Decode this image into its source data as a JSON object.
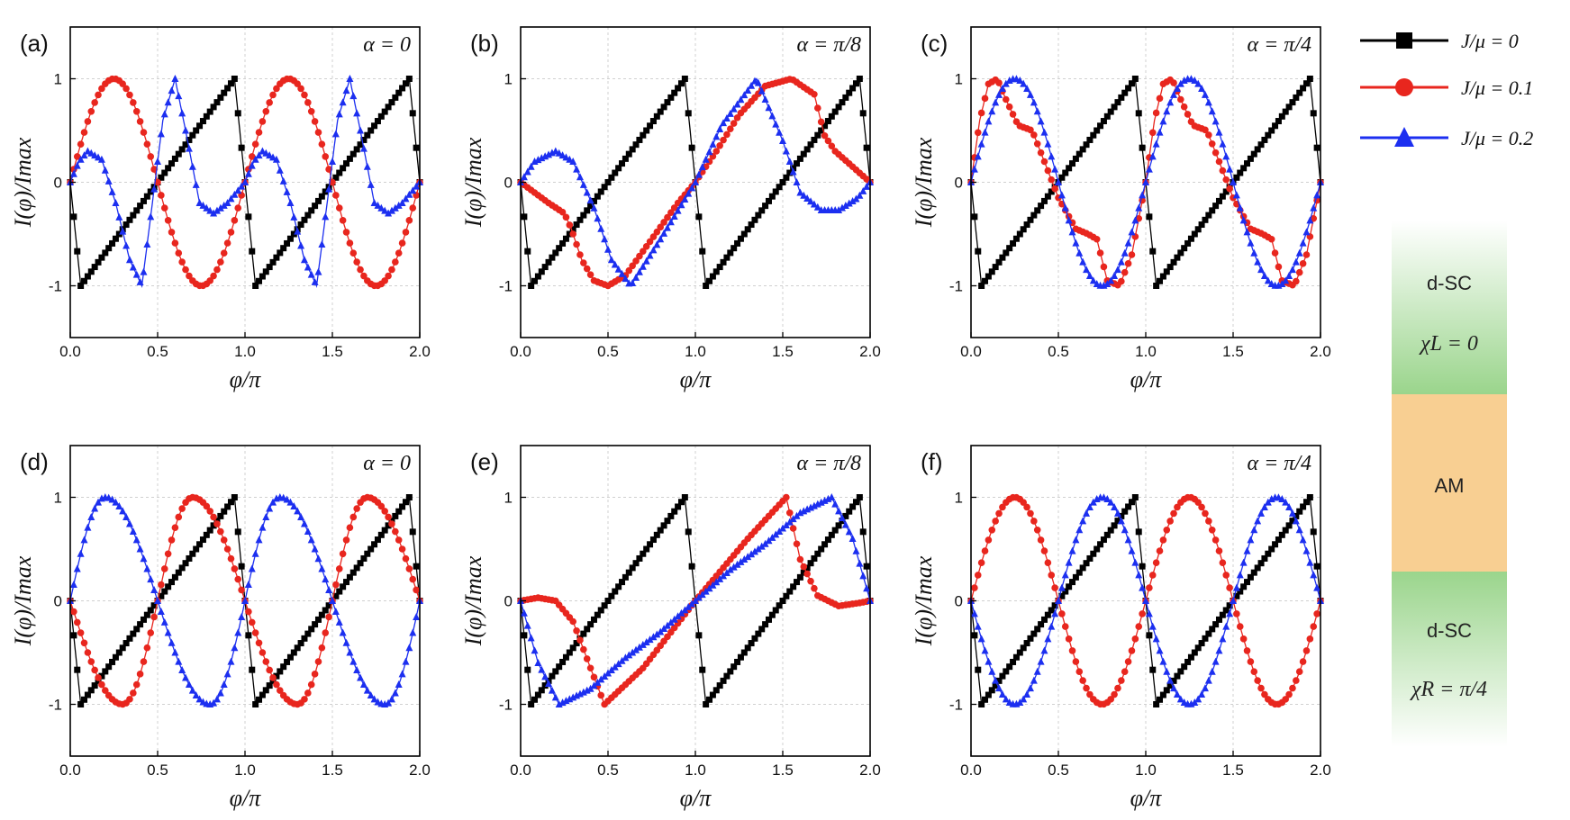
{
  "figure": {
    "legend": [
      {
        "label": "J/μ = 0",
        "color": "#000000",
        "marker": "square"
      },
      {
        "label": "J/μ = 0.1",
        "color": "#e8261e",
        "marker": "circle"
      },
      {
        "label": "J/μ = 0.2",
        "color": "#1c2ff0",
        "marker": "triangle"
      }
    ],
    "schematic": {
      "top_layer": {
        "name": "d-SC",
        "chi": "χL = 0",
        "color": "#8fd07f"
      },
      "middle_layer": {
        "name": "AM",
        "color": "#f8cf92"
      },
      "bottom_layer": {
        "name": "d-SC",
        "chi": "χR = π/4",
        "color": "#8fd07f"
      }
    }
  },
  "chart_data": [
    {
      "panel": "(a)",
      "type": "line",
      "annotation": "α = 0",
      "xlabel": "φ/π",
      "ylabel": "I(φ)/Imax",
      "xlim": [
        0,
        2
      ],
      "ylim": [
        -1.5,
        1.5
      ],
      "xticks": [
        "0.0",
        "0.5",
        "1.0",
        "1.5",
        "2.0"
      ],
      "yticks": [
        "1",
        "0",
        "-1"
      ],
      "series": [
        {
          "name": "J/μ = 0",
          "func": "saw",
          "params": {
            "phase": 0
          }
        },
        {
          "name": "J/μ = 0.1",
          "func": "sine",
          "params": {
            "sign": 1,
            "peak": 0.33
          }
        },
        {
          "name": "J/μ = 0.2",
          "func": "wiggle",
          "params": {
            "peak": 0.6
          }
        }
      ]
    },
    {
      "panel": "(b)",
      "type": "line",
      "annotation": "α = π/8",
      "xlabel": "φ/π",
      "ylabel": "I(φ)/Imax",
      "xlim": [
        0,
        2
      ],
      "ylim": [
        -1.5,
        1.5
      ],
      "xticks": [
        "0.0",
        "0.5",
        "1.0",
        "1.5",
        "2.0"
      ],
      "yticks": [
        "1",
        "0",
        "-1"
      ],
      "series": [
        {
          "name": "J/μ = 0",
          "func": "saw",
          "params": {
            "phase": 0
          }
        },
        {
          "name": "J/μ = 0.1",
          "func": "bshape",
          "params": {
            "min_at": 0.5,
            "max_at": 1.55,
            "kink": 0.27
          }
        },
        {
          "name": "J/μ = 0.2",
          "func": "bsine",
          "params": {
            "max_at": 1.35,
            "min_at": 0.63,
            "bump": 0.3
          }
        }
      ]
    },
    {
      "panel": "(c)",
      "type": "line",
      "annotation": "α = π/4",
      "xlabel": "φ/π",
      "ylabel": "I(φ)/Imax",
      "xlim": [
        0,
        2
      ],
      "ylim": [
        -1.5,
        1.5
      ],
      "xticks": [
        "0.0",
        "0.5",
        "1.0",
        "1.5",
        "2.0"
      ],
      "yticks": [
        "1",
        "0",
        "-1"
      ],
      "series": [
        {
          "name": "J/μ = 0",
          "func": "saw",
          "params": {
            "phase": 0
          }
        },
        {
          "name": "J/μ = 0.1",
          "func": "stepped",
          "params": {
            "period": 1
          }
        },
        {
          "name": "J/μ = 0.2",
          "func": "sine",
          "params": {
            "sign": 1,
            "peak": 0.25
          }
        }
      ]
    },
    {
      "panel": "(d)",
      "type": "line",
      "annotation": "α = 0",
      "xlabel": "φ/π",
      "ylabel": "I(φ)/Imax",
      "xlim": [
        0,
        2
      ],
      "ylim": [
        -1.5,
        1.5
      ],
      "xticks": [
        "0.0",
        "0.5",
        "1.0",
        "1.5",
        "2.0"
      ],
      "yticks": [
        "1",
        "0",
        "-1"
      ],
      "series": [
        {
          "name": "J/μ = 0",
          "func": "saw",
          "params": {
            "phase": 0
          }
        },
        {
          "name": "J/μ = 0.1",
          "func": "skew",
          "params": {
            "sign": -1,
            "peak": 0.3
          }
        },
        {
          "name": "J/μ = 0.2",
          "func": "skew",
          "params": {
            "sign": 1,
            "peak": 0.2
          }
        }
      ]
    },
    {
      "panel": "(e)",
      "type": "line",
      "annotation": "α = π/8",
      "xlabel": "φ/π",
      "ylabel": "I(φ)/Imax",
      "xlim": [
        0,
        2
      ],
      "ylim": [
        -1.5,
        1.5
      ],
      "xticks": [
        "0.0",
        "0.5",
        "1.0",
        "1.5",
        "2.0"
      ],
      "yticks": [
        "1",
        "0",
        "-1"
      ],
      "series": [
        {
          "name": "J/μ = 0",
          "func": "saw",
          "params": {
            "phase": 0
          }
        },
        {
          "name": "J/μ = 0.1",
          "func": "eshape",
          "params": {
            "min_at": 0.48,
            "max_at": 1.52
          }
        },
        {
          "name": "J/μ = 0.2",
          "func": "bsine",
          "params": {
            "max_at": 1.78,
            "min_at": 0.22,
            "bump": 0
          }
        }
      ]
    },
    {
      "panel": "(f)",
      "type": "line",
      "annotation": "α = π/4",
      "xlabel": "φ/π",
      "ylabel": "I(φ)/Imax",
      "xlim": [
        0,
        2
      ],
      "ylim": [
        -1.5,
        1.5
      ],
      "xticks": [
        "0.0",
        "0.5",
        "1.0",
        "1.5",
        "2.0"
      ],
      "yticks": [
        "1",
        "0",
        "-1"
      ],
      "series": [
        {
          "name": "J/μ = 0",
          "func": "saw",
          "params": {
            "phase": 0
          }
        },
        {
          "name": "J/μ = 0.1",
          "func": "sine",
          "params": {
            "sign": 1,
            "peak": 0.25
          }
        },
        {
          "name": "J/μ = 0.2",
          "func": "sine",
          "params": {
            "sign": -1,
            "peak": 0.25
          }
        }
      ]
    }
  ]
}
